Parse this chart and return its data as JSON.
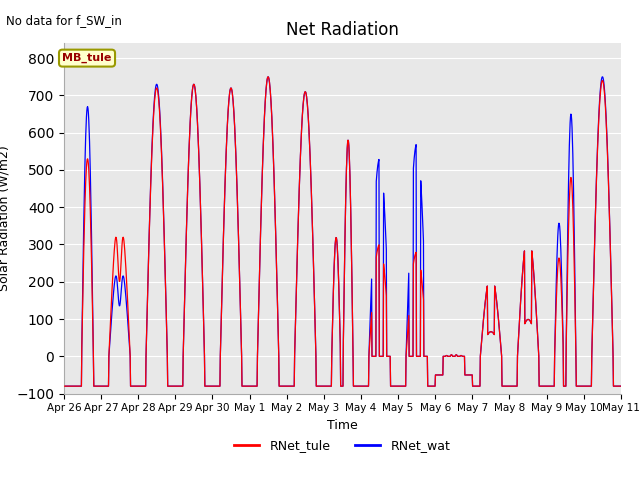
{
  "title": "Net Radiation",
  "xlabel": "Time",
  "ylabel": "Solar Radiation (W/m2)",
  "annotation": "No data for f_SW_in",
  "legend_label1": "RNet_tule",
  "legend_label2": "RNet_wat",
  "legend_station": "MB_tule",
  "color1": "#ff0000",
  "color2": "#0000ff",
  "ylim": [
    -100,
    840
  ],
  "yticks": [
    -100,
    0,
    100,
    200,
    300,
    400,
    500,
    600,
    700,
    800
  ],
  "xtick_labels": [
    "Apr 26",
    "Apr 27",
    "Apr 28",
    "Apr 29",
    "Apr 30",
    "May 1",
    "May 2",
    "May 3",
    "May 4",
    "May 5",
    "May 6",
    "May 7",
    "May 8",
    "May 9",
    "May 10",
    "May 11"
  ],
  "bg_color": "#e8e8e8",
  "n_days": 15,
  "pts_per_day": 96,
  "night_val": -80
}
